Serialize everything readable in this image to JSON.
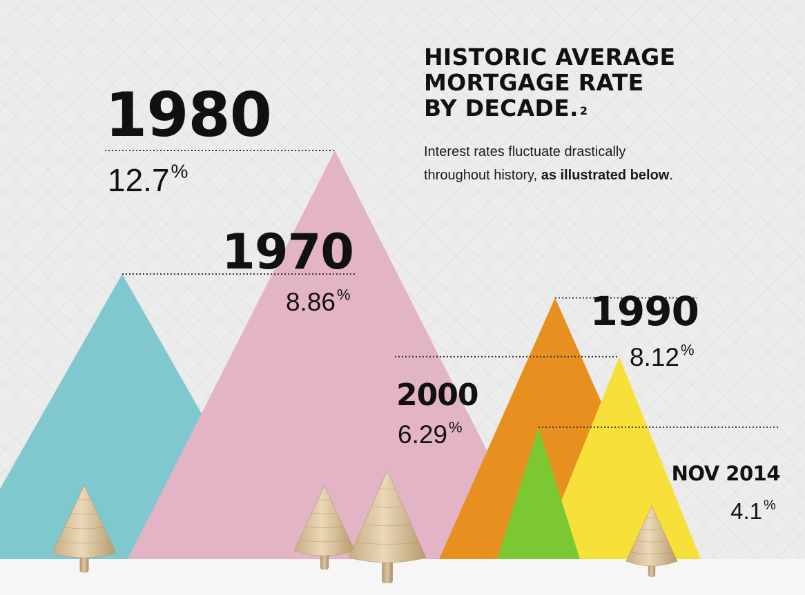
{
  "header": {
    "title_lines": [
      "HISTORIC AVERAGE",
      "MORTGAGE RATE",
      "BY DECADE."
    ],
    "title_footnote": "2",
    "subtitle_line1": "Interest rates fluctuate drastically",
    "subtitle_line2_plain": "throughout history, ",
    "subtitle_line2_bold": "as illustrated below",
    "subtitle_line2_end": "."
  },
  "chart_data": {
    "type": "bar",
    "title": "HISTORIC AVERAGE MORTGAGE RATE BY DECADE.",
    "categories": [
      "1980",
      "1970",
      "1990",
      "2000",
      "NOV 2014"
    ],
    "values": [
      12.7,
      8.86,
      8.12,
      6.29,
      4.1
    ],
    "value_labels": [
      "12.7",
      "8.86",
      "8.12",
      "6.29",
      "4.1"
    ],
    "unit": "%",
    "colors": {
      "1980": "#e2b4c6",
      "1970": "#7fc8ce",
      "1990": "#e8901f",
      "2000": "#f8e03a",
      "NOV 2014": "#7cc832"
    },
    "ground_color": "#f6f6f6",
    "tree_color": "#dcc7a2"
  }
}
